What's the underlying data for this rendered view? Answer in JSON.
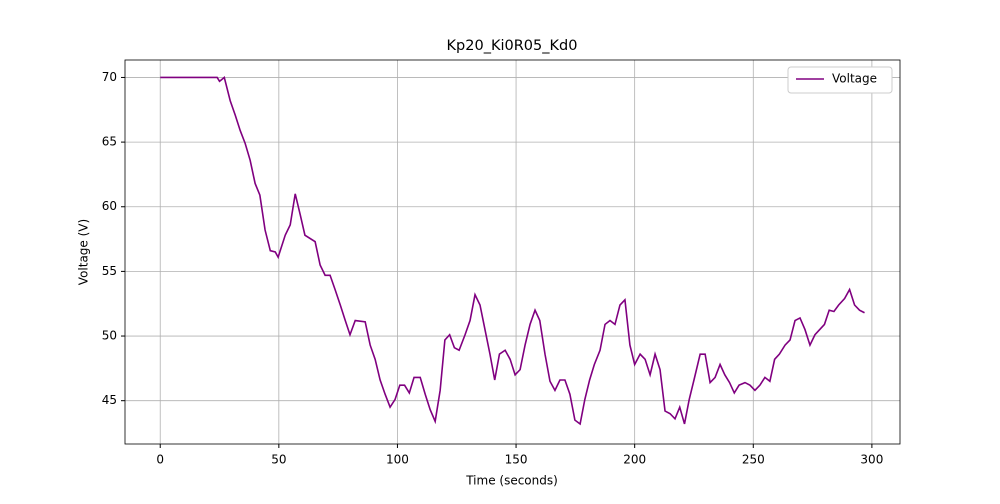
{
  "chart_data": {
    "type": "line",
    "title": "Kp20_Ki0R05_Kd0",
    "x_label": "Time (seconds)",
    "y_label": "Voltage (V)",
    "x": [
      0,
      10,
      20,
      24,
      25,
      27,
      29.5,
      31.6,
      33.7,
      35.8,
      37.9,
      40,
      42,
      44.2,
      46.4,
      48.5,
      49.7,
      52.7,
      54.8,
      56.9,
      59,
      61,
      65.3,
      67.4,
      69.5,
      71.6,
      73.7,
      75.9,
      78,
      80,
      82.2,
      86.4,
      88.5,
      90.6,
      92.7,
      94.8,
      96.9,
      99,
      101,
      103,
      105,
      107,
      109.6,
      111.7,
      113.8,
      115.9,
      118,
      120,
      122,
      124,
      126,
      128.5,
      130.6,
      132.7,
      134.8,
      136.9,
      139,
      141,
      143,
      145.4,
      147.5,
      149.6,
      151.7,
      153.8,
      155.9,
      158,
      160,
      162.2,
      164.3,
      166.4,
      168.5,
      170.6,
      172.7,
      174.8,
      177,
      179,
      181,
      183,
      185.4,
      187.5,
      189.6,
      191.7,
      193.8,
      195.9,
      198,
      200,
      202.3,
      204.4,
      206.5,
      208.6,
      210.7,
      212.8,
      214.9,
      217,
      219,
      221,
      223,
      225,
      227.6,
      229.7,
      231.8,
      233.9,
      236,
      238,
      240,
      242,
      244,
      246.5,
      248.6,
      250.7,
      252.8,
      254.9,
      257,
      259,
      261,
      263.4,
      265.5,
      267.6,
      269.7,
      271.8,
      273.9,
      276,
      278,
      280,
      282,
      284,
      286,
      288.5,
      290.6,
      292.7,
      294.8,
      296.9
    ],
    "series": [
      {
        "name": "Voltage",
        "color": "#800080",
        "values": [
          70,
          70,
          70,
          70,
          69.7,
          70,
          68.2,
          67.1,
          65.9,
          64.9,
          63.6,
          61.8,
          60.9,
          58.2,
          56.6,
          56.5,
          56.1,
          57.8,
          58.6,
          61,
          59.4,
          57.8,
          57.3,
          55.5,
          54.7,
          54.7,
          53.6,
          52.4,
          51.2,
          50.1,
          51.2,
          51.1,
          49.3,
          48.2,
          46.6,
          45.5,
          44.5,
          45.1,
          46.2,
          46.2,
          45.6,
          46.8,
          46.8,
          45.5,
          44.3,
          43.4,
          45.8,
          49.7,
          50.1,
          49.1,
          48.9,
          50.1,
          51.2,
          53.2,
          52.4,
          50.5,
          48.6,
          46.6,
          48.6,
          48.9,
          48.2,
          47,
          47.4,
          49.3,
          50.9,
          52,
          51.2,
          48.6,
          46.5,
          45.8,
          46.6,
          46.6,
          45.5,
          43.5,
          43.2,
          45.1,
          46.6,
          47.8,
          48.9,
          50.9,
          51.2,
          50.9,
          52.4,
          52.8,
          49.3,
          47.8,
          48.6,
          48.2,
          47,
          48.6,
          47.4,
          44.2,
          44,
          43.6,
          44.5,
          43.2,
          45.1,
          46.6,
          48.6,
          48.6,
          46.4,
          46.8,
          47.8,
          47,
          46.4,
          45.6,
          46.2,
          46.4,
          46.2,
          45.8,
          46.2,
          46.8,
          46.5,
          48.2,
          48.6,
          49.3,
          49.7,
          51.2,
          51.4,
          50.5,
          49.3,
          50.1,
          50.5,
          50.9,
          52,
          51.9,
          52.4,
          52.9,
          53.6,
          52.4,
          52,
          51.8
        ]
      }
    ],
    "xlim": [
      -14.85,
      311.85
    ],
    "ylim": [
      41.65,
      71.35
    ],
    "xticks": [
      0,
      50,
      100,
      150,
      200,
      250,
      300
    ],
    "yticks": [
      45,
      50,
      55,
      60,
      65,
      70
    ],
    "grid": true,
    "legend": "upper right"
  }
}
